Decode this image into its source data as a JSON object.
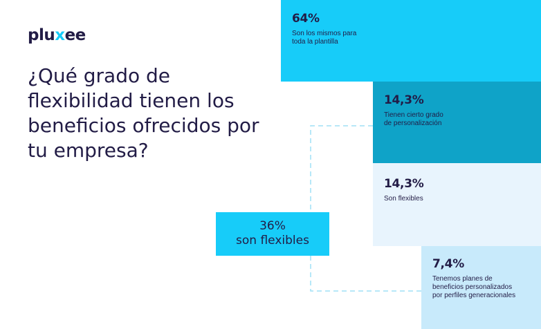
{
  "brand": {
    "logo_prefix": "plu",
    "logo_x": "x",
    "logo_suffix": "ee"
  },
  "title": "¿Qué grado de flexibilidad tienen los beneficios ofrecidos por tu empresa?",
  "summary": {
    "value": "36%",
    "label": "son flexibles"
  },
  "colors": {
    "navy": "#221c46",
    "cyan": "#17ccf9",
    "teal": "#0fa3c8",
    "pale_blue": "#e8f4fd",
    "light_blue": "#c8eafb",
    "dash": "#9fe1f5"
  },
  "chart_data": {
    "type": "bar",
    "title": "¿Qué grado de flexibilidad tienen los beneficios ofrecidos por tu empresa?",
    "categories": [
      "Son los mismos para toda la plantilla",
      "Tienen cierto grado de personalización",
      "Son flexibles",
      "Tenemos planes de beneficios personalizados por perfiles generacionales"
    ],
    "values": [
      64,
      14.3,
      14.3,
      7.4
    ],
    "value_labels": [
      "64%",
      "14,3%",
      "14,3%",
      "7,4%"
    ],
    "description_lines": [
      [
        "Son los mismos para",
        "toda la plantilla"
      ],
      [
        "Tienen cierto grado",
        "de personalización"
      ],
      [
        "Son flexibles"
      ],
      [
        "Tenemos planes de",
        "beneficios personalizados",
        "por perfiles generacionales"
      ]
    ],
    "bracket": {
      "value": "36%",
      "label": "son flexibles",
      "groups": [
        1,
        2,
        3
      ]
    }
  }
}
